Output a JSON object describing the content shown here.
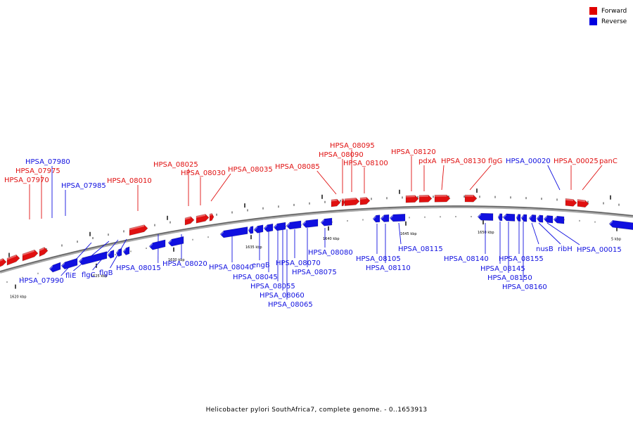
{
  "legend": {
    "forward": {
      "label": "Forward",
      "color": "#ff0000"
    },
    "reverse": {
      "label": "Reverse",
      "color": "#0000ff"
    }
  },
  "caption": "Helicobacter pylori SouthAfrica7, complete genome. - 0..1653913",
  "colors": {
    "forward": "#e01010",
    "reverse": "#1010e0",
    "backbone": "#888888"
  },
  "ticks": [
    "1620 kbp",
    "1625 kbp",
    "1630 kbp",
    "1635 kbp",
    "1640 kbp",
    "1645 kbp",
    "1650 kbp",
    "5 kbp"
  ],
  "genes": [
    {
      "label": "HPSA_07970",
      "strand": "forward"
    },
    {
      "label": "HPSA_07975",
      "strand": "forward"
    },
    {
      "label": "HPSA_07980",
      "strand": "reverse"
    },
    {
      "label": "HPSA_07985",
      "strand": "reverse"
    },
    {
      "label": "HPSA_08010",
      "strand": "forward"
    },
    {
      "label": "HPSA_08025",
      "strand": "forward"
    },
    {
      "label": "HPSA_08030",
      "strand": "forward"
    },
    {
      "label": "HPSA_08035",
      "strand": "forward"
    },
    {
      "label": "HPSA_08085",
      "strand": "forward"
    },
    {
      "label": "HPSA_08090",
      "strand": "forward"
    },
    {
      "label": "HPSA_08095",
      "strand": "forward"
    },
    {
      "label": "HPSA_08100",
      "strand": "forward"
    },
    {
      "label": "HPSA_08120",
      "strand": "forward"
    },
    {
      "label": "pdxA",
      "strand": "forward"
    },
    {
      "label": "HPSA_08130",
      "strand": "forward"
    },
    {
      "label": "flgG",
      "strand": "forward"
    },
    {
      "label": "HPSA_00020",
      "strand": "reverse"
    },
    {
      "label": "HPSA_00025",
      "strand": "forward"
    },
    {
      "label": "panC",
      "strand": "forward"
    },
    {
      "label": "HPSA_07990",
      "strand": "reverse"
    },
    {
      "label": "fliE",
      "strand": "reverse"
    },
    {
      "label": "flgC",
      "strand": "reverse"
    },
    {
      "label": "flgB",
      "strand": "reverse"
    },
    {
      "label": "HPSA_08015",
      "strand": "reverse"
    },
    {
      "label": "HPSA_08020",
      "strand": "reverse"
    },
    {
      "label": "HPSA_08040",
      "strand": "reverse"
    },
    {
      "label": "engB",
      "strand": "reverse"
    },
    {
      "label": "HPSA_08045",
      "strand": "reverse"
    },
    {
      "label": "HPSA_08055",
      "strand": "reverse"
    },
    {
      "label": "HPSA_08060",
      "strand": "reverse"
    },
    {
      "label": "HPSA_08065",
      "strand": "reverse"
    },
    {
      "label": "HPSA_08070",
      "strand": "reverse"
    },
    {
      "label": "HPSA_08075",
      "strand": "reverse"
    },
    {
      "label": "HPSA_08080",
      "strand": "reverse"
    },
    {
      "label": "HPSA_08105",
      "strand": "reverse"
    },
    {
      "label": "HPSA_08110",
      "strand": "reverse"
    },
    {
      "label": "HPSA_08115",
      "strand": "reverse"
    },
    {
      "label": "HPSA_08140",
      "strand": "reverse"
    },
    {
      "label": "HPSA_08145",
      "strand": "reverse"
    },
    {
      "label": "HPSA_08150",
      "strand": "reverse"
    },
    {
      "label": "HPSA_08155",
      "strand": "reverse"
    },
    {
      "label": "HPSA_08160",
      "strand": "reverse"
    },
    {
      "label": "nusB",
      "strand": "reverse"
    },
    {
      "label": "ribH",
      "strand": "reverse"
    },
    {
      "label": "HPSA_00015",
      "strand": "reverse"
    }
  ]
}
